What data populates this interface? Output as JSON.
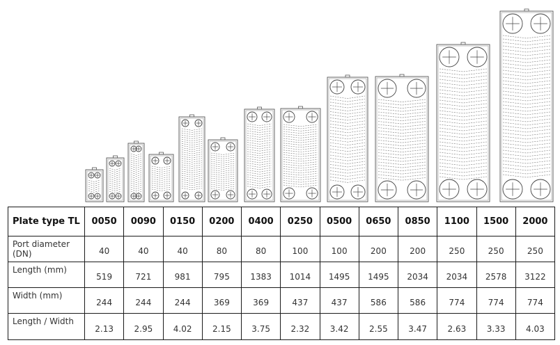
{
  "table": {
    "header_label": "Plate type TL",
    "plate_types": [
      "0050",
      "0090",
      "0150",
      "0200",
      "0400",
      "0250",
      "0500",
      "0650",
      "0850",
      "1100",
      "1500",
      "2000"
    ],
    "rows": [
      {
        "label": "Port diameter (DN)",
        "values": [
          "40",
          "40",
          "40",
          "80",
          "80",
          "100",
          "100",
          "200",
          "200",
          "250",
          "250",
          "250"
        ]
      },
      {
        "label": "Length (mm)",
        "values": [
          "519",
          "721",
          "981",
          "795",
          "1383",
          "1014",
          "1495",
          "1495",
          "2034",
          "2034",
          "2578",
          "3122"
        ]
      },
      {
        "label": "Width (mm)",
        "values": [
          "244",
          "244",
          "244",
          "369",
          "369",
          "437",
          "437",
          "586",
          "586",
          "774",
          "774",
          "774"
        ]
      },
      {
        "label": "Length / Width",
        "values": [
          "2.13",
          "2.95",
          "4.02",
          "2.15",
          "3.75",
          "2.32",
          "3.42",
          "2.55",
          "3.47",
          "2.63",
          "3.33",
          "4.03"
        ]
      }
    ]
  }
}
